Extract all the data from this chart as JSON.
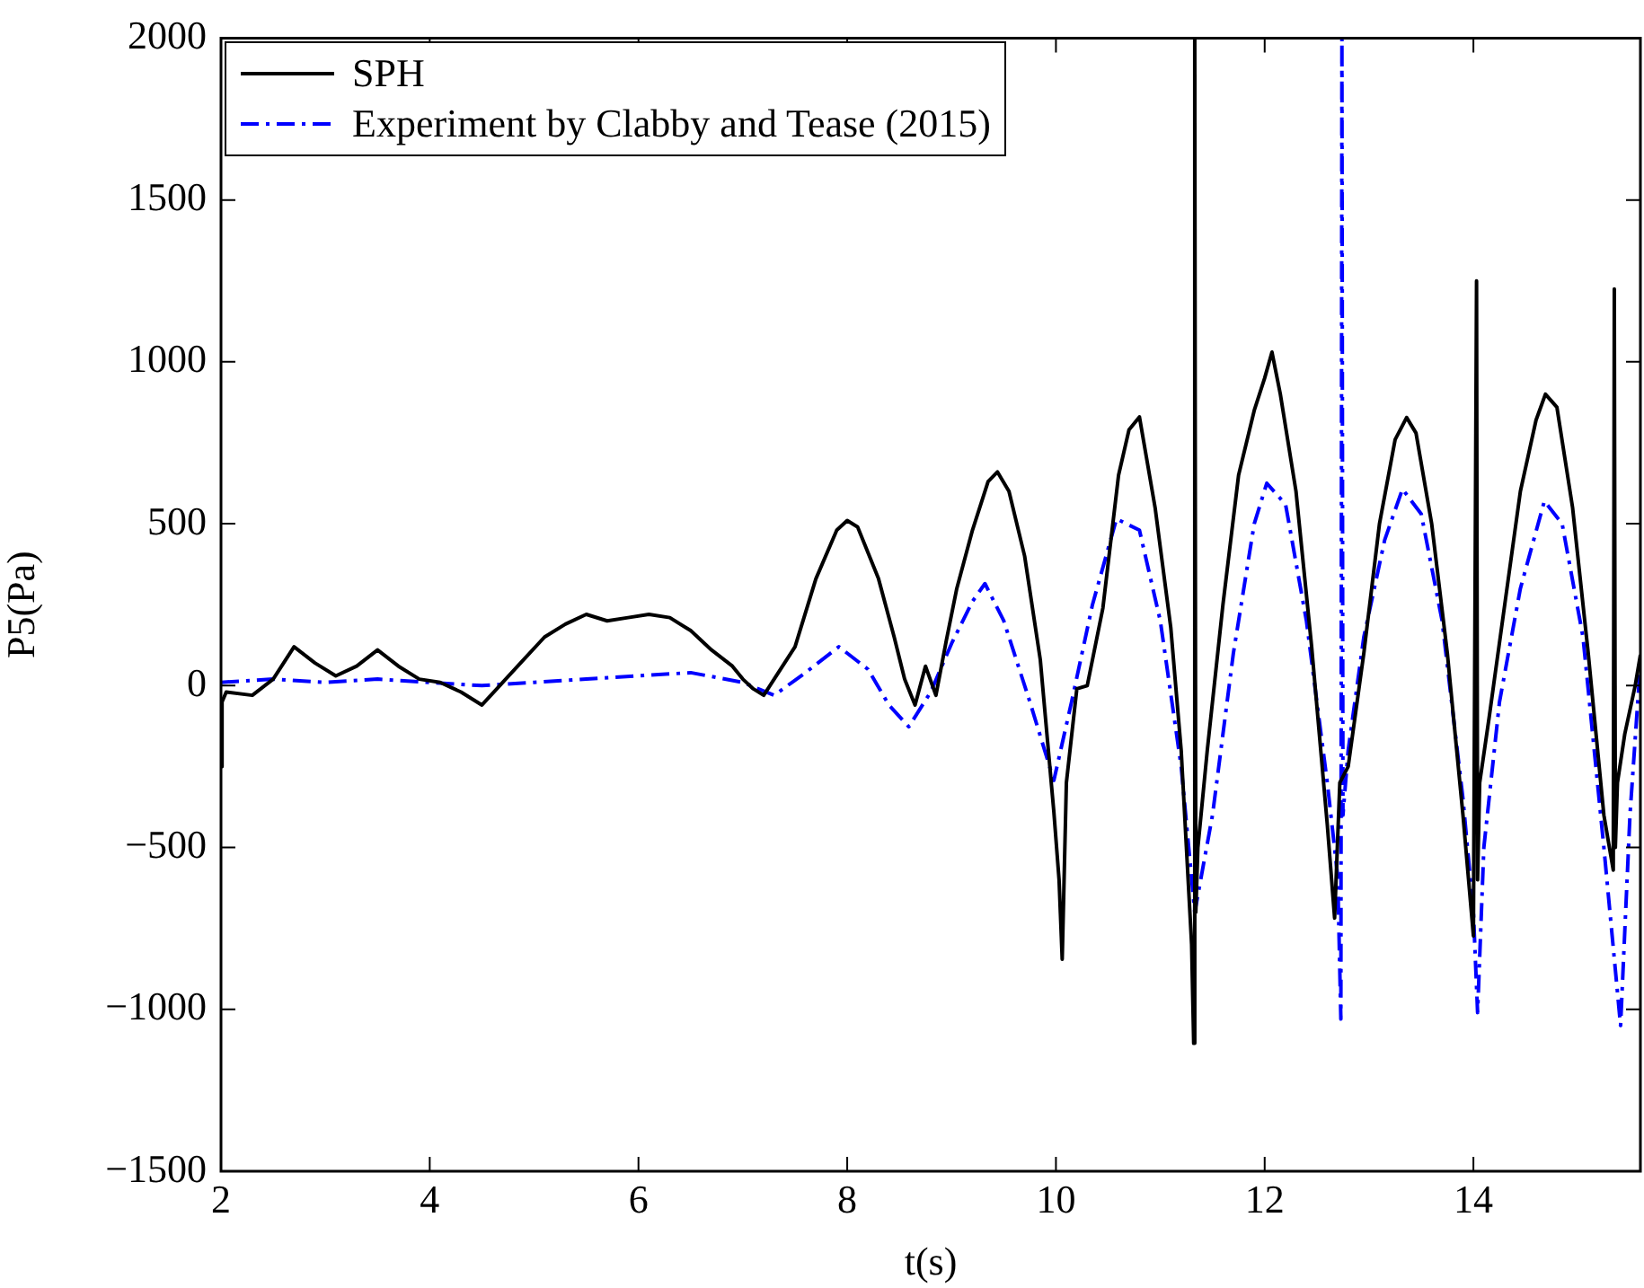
{
  "chart_data": {
    "type": "line",
    "xlabel": "t(s)",
    "ylabel": "P5(Pa)",
    "xlim": [
      2,
      15.6
    ],
    "xticks": [
      2,
      4,
      6,
      8,
      10,
      12,
      14
    ],
    "ylim": [
      -1500,
      2000
    ],
    "yticks": [
      {
        "value": -1500,
        "label": "−1500"
      },
      {
        "value": -1000,
        "label": "−1000"
      },
      {
        "value": -500,
        "label": "−500"
      },
      0,
      500,
      1000,
      1500,
      2000
    ],
    "grid": false,
    "legend": "top left",
    "marker": "none",
    "series": [
      {
        "name": "SPH",
        "color": "#000000",
        "line_style": "solid",
        "x": [
          2.0,
          2.01,
          2.05,
          2.3,
          2.5,
          2.7,
          2.9,
          3.1,
          3.3,
          3.5,
          3.7,
          3.9,
          4.1,
          4.3,
          4.5,
          4.7,
          4.9,
          5.1,
          5.3,
          5.5,
          5.7,
          5.9,
          6.1,
          6.3,
          6.5,
          6.7,
          6.9,
          7.0,
          7.1,
          7.2,
          7.3,
          7.5,
          7.7,
          7.9,
          8.0,
          8.1,
          8.3,
          8.45,
          8.55,
          8.65,
          8.75,
          8.85,
          8.95,
          9.05,
          9.2,
          9.35,
          9.44,
          9.55,
          9.7,
          9.85,
          9.98,
          10.03,
          10.06,
          10.1,
          10.2,
          10.3,
          10.45,
          10.6,
          10.7,
          10.8,
          10.95,
          11.1,
          11.2,
          11.3,
          11.32,
          11.33,
          11.34,
          11.36,
          11.45,
          11.6,
          11.75,
          11.9,
          12.0,
          12.07,
          12.15,
          12.3,
          12.45,
          12.6,
          12.67,
          12.72,
          12.8,
          12.95,
          13.1,
          13.25,
          13.36,
          13.45,
          13.6,
          13.75,
          13.9,
          14.0,
          14.03,
          14.04,
          14.06,
          14.15,
          14.3,
          14.45,
          14.6,
          14.69,
          14.8,
          14.95,
          15.1,
          15.25,
          15.34,
          15.35,
          15.36,
          15.38,
          15.45,
          15.55,
          15.6
        ],
        "values": [
          -250,
          -50,
          -20,
          -30,
          20,
          120,
          70,
          30,
          60,
          110,
          60,
          20,
          10,
          -20,
          -60,
          10,
          80,
          150,
          190,
          220,
          200,
          210,
          220,
          210,
          170,
          110,
          60,
          20,
          -10,
          -30,
          20,
          120,
          330,
          480,
          510,
          490,
          330,
          150,
          20,
          -60,
          60,
          -30,
          140,
          300,
          480,
          630,
          660,
          600,
          400,
          80,
          -390,
          -600,
          -845,
          -300,
          -10,
          0,
          240,
          650,
          790,
          830,
          550,
          180,
          -200,
          -800,
          -1105,
          2000,
          -700,
          -500,
          -200,
          250,
          650,
          850,
          950,
          1030,
          900,
          600,
          120,
          -430,
          -718,
          -300,
          -250,
          100,
          500,
          760,
          828,
          780,
          500,
          100,
          -400,
          -773,
          1250,
          -600,
          -300,
          -100,
          250,
          600,
          820,
          900,
          860,
          550,
          100,
          -400,
          -570,
          1225,
          -500,
          -300,
          -150,
          0,
          95
        ]
      },
      {
        "name": "Experiment by Clabby and Tease (2015)",
        "color": "#0000ff",
        "line_style": "dashdot",
        "x": [
          2.0,
          2.5,
          3.0,
          3.5,
          4.0,
          4.5,
          5.0,
          5.5,
          6.0,
          6.5,
          7.0,
          7.3,
          7.6,
          7.92,
          8.2,
          8.4,
          8.59,
          8.8,
          9.0,
          9.2,
          9.32,
          9.5,
          9.75,
          9.98,
          10.15,
          10.35,
          10.58,
          10.8,
          11.0,
          11.2,
          11.33,
          11.5,
          11.7,
          11.9,
          12.02,
          12.2,
          12.4,
          12.6,
          12.7,
          12.73,
          12.74,
          12.75,
          12.8,
          12.95,
          13.15,
          13.32,
          13.5,
          13.7,
          13.9,
          14.0,
          14.04,
          14.1,
          14.25,
          14.45,
          14.68,
          14.85,
          15.05,
          15.25,
          15.41,
          15.5,
          15.6
        ],
        "values": [
          10,
          20,
          10,
          20,
          10,
          0,
          10,
          20,
          30,
          40,
          10,
          -30,
          40,
          120,
          50,
          -60,
          -127,
          -20,
          130,
          260,
          315,
          200,
          -50,
          -293,
          -50,
          250,
          515,
          480,
          200,
          -250,
          -700,
          -400,
          100,
          500,
          625,
          560,
          200,
          -300,
          -590,
          -1030,
          2000,
          -400,
          -200,
          150,
          450,
          607,
          530,
          200,
          -350,
          -700,
          -1010,
          -500,
          -50,
          300,
          570,
          500,
          150,
          -500,
          -1050,
          -400,
          70
        ]
      }
    ]
  }
}
